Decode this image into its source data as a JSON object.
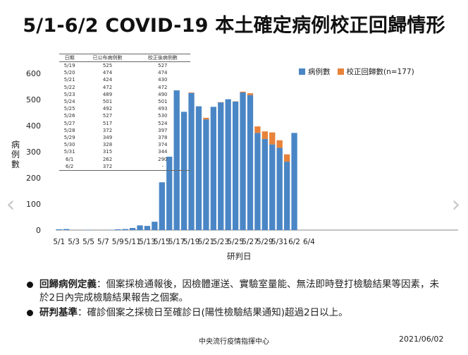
{
  "title": "5/1-6/2 COVID-19 本土確定病例校正回歸情形",
  "nav": {
    "prev": "‹",
    "next": "›"
  },
  "legend": {
    "reported": "病例數",
    "backfill": "校正回歸數(n=177)"
  },
  "colors": {
    "reported": "#4a86c5",
    "backfill": "#e8823a"
  },
  "table": {
    "headers": [
      "日期",
      "已公布病例數",
      "校正後病例數"
    ],
    "rows": [
      [
        "5/19",
        "525",
        "527"
      ],
      [
        "5/20",
        "474",
        "474"
      ],
      [
        "5/21",
        "424",
        "430"
      ],
      [
        "5/22",
        "472",
        "472"
      ],
      [
        "5/23",
        "489",
        "490"
      ],
      [
        "5/24",
        "501",
        "501"
      ],
      [
        "5/25",
        "492",
        "493"
      ],
      [
        "5/26",
        "527",
        "530"
      ],
      [
        "5/27",
        "517",
        "524"
      ],
      [
        "5/28",
        "372",
        "397"
      ],
      [
        "5/29",
        "349",
        "378"
      ],
      [
        "5/30",
        "328",
        "374"
      ],
      [
        "5/31",
        "315",
        "344"
      ],
      [
        "6/1",
        "262",
        "290"
      ],
      [
        "6/2",
        "372",
        "-"
      ]
    ]
  },
  "chart_data": {
    "type": "bar",
    "stacked": true,
    "title": "5/1-6/2 COVID-19 本土確定病例校正回歸情形",
    "xlabel": "研判日",
    "ylabel": "病例數",
    "ylim": [
      0,
      600
    ],
    "yticks": [
      0,
      100,
      200,
      300,
      400,
      500,
      600
    ],
    "xtick_labels": [
      "5/1",
      "5/3",
      "5/5",
      "5/7",
      "5/9",
      "5/11",
      "5/13",
      "5/15",
      "5/17",
      "5/19",
      "5/21",
      "5/23",
      "5/25",
      "5/27",
      "5/29",
      "5/31",
      "6/2",
      "6/4"
    ],
    "categories": [
      "5/1",
      "5/2",
      "5/3",
      "5/4",
      "5/5",
      "5/6",
      "5/7",
      "5/8",
      "5/9",
      "5/10",
      "5/11",
      "5/12",
      "5/13",
      "5/14",
      "5/15",
      "5/16",
      "5/17",
      "5/18",
      "5/19",
      "5/20",
      "5/21",
      "5/22",
      "5/23",
      "5/24",
      "5/25",
      "5/26",
      "5/27",
      "5/28",
      "5/29",
      "5/30",
      "5/31",
      "6/1",
      "6/2"
    ],
    "series": [
      {
        "name": "病例數",
        "values": [
          3,
          4,
          0,
          0,
          1,
          0,
          0,
          1,
          3,
          4,
          8,
          18,
          16,
          32,
          183,
          281,
          535,
          453,
          525,
          474,
          424,
          472,
          489,
          501,
          492,
          527,
          517,
          372,
          349,
          328,
          315,
          262,
          372
        ]
      },
      {
        "name": "校正回歸數(n=177)",
        "values": [
          0,
          0,
          0,
          0,
          0,
          0,
          0,
          0,
          0,
          0,
          0,
          0,
          0,
          0,
          0,
          0,
          0,
          0,
          2,
          0,
          6,
          0,
          1,
          0,
          1,
          3,
          7,
          25,
          29,
          46,
          29,
          28,
          0
        ]
      }
    ],
    "grid": false,
    "legend_position": "top-right"
  },
  "notes": [
    {
      "term": "回歸病例定義",
      "text": "：個案採檢通報後，因檢體運送、實驗室量能、無法即時登打檢驗結果等因素，未於2日內完成檢驗結果報告之個案。"
    },
    {
      "term": "研判基準",
      "text": "：確診個案之採檢日至確診日(陽性檢驗結果通知)超過2日以上。"
    }
  ],
  "footer": {
    "org": "中央流行疫情指揮中心",
    "date": "2021/06/02"
  }
}
